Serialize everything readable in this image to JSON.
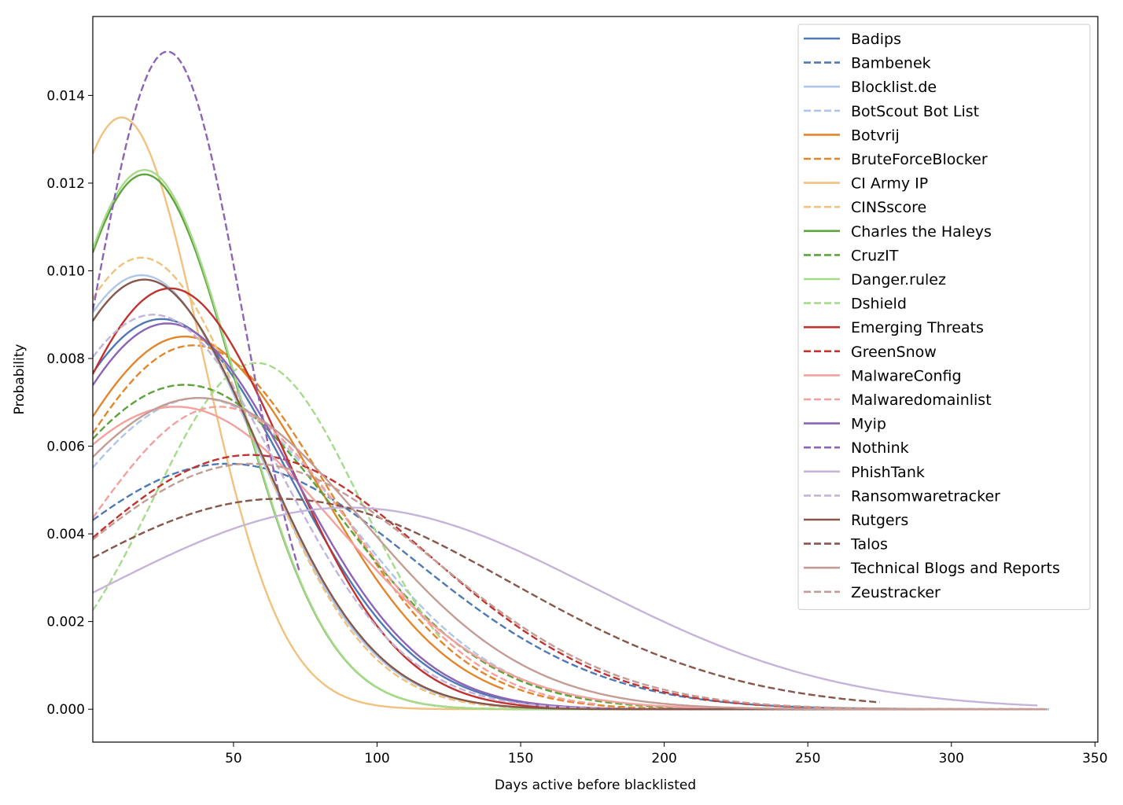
{
  "chart_data": {
    "type": "line",
    "title": "",
    "xlabel": "Days active before blacklisted",
    "ylabel": "Probability",
    "xlim": [
      1,
      351
    ],
    "ylim": [
      -0.00075,
      0.0158
    ],
    "xticks": [
      50,
      100,
      150,
      200,
      250,
      300,
      350
    ],
    "yticks": [
      0.0,
      0.002,
      0.004,
      0.006,
      0.008,
      0.01,
      0.012,
      0.014
    ],
    "ytick_labels": [
      "0.000",
      "0.002",
      "0.004",
      "0.006",
      "0.008",
      "0.010",
      "0.012",
      "0.014"
    ],
    "legend_position": "top-right",
    "grid": false,
    "series": [
      {
        "name": "Badips",
        "color": "#4e79b5",
        "dash": false,
        "peak_x": 25,
        "peak_y": 0.0089,
        "sigma": 44,
        "x_end": 334
      },
      {
        "name": "Bambenek",
        "color": "#4e79b5",
        "dash": true,
        "peak_x": 48,
        "peak_y": 0.0056,
        "sigma": 65,
        "x_end": 334
      },
      {
        "name": "Blocklist.de",
        "color": "#aec7e8",
        "dash": false,
        "peak_x": 18,
        "peak_y": 0.0099,
        "sigma": 40,
        "x_end": 334
      },
      {
        "name": "BotScout Bot List",
        "color": "#aec7e8",
        "dash": true,
        "peak_x": 38,
        "peak_y": 0.0071,
        "sigma": 52,
        "x_end": 176
      },
      {
        "name": "Botvrij",
        "color": "#e2862c",
        "dash": false,
        "peak_x": 33,
        "peak_y": 0.0085,
        "sigma": 46,
        "x_end": 144
      },
      {
        "name": "BruteForceBlocker",
        "color": "#e2862c",
        "dash": true,
        "peak_x": 36,
        "peak_y": 0.0083,
        "sigma": 47,
        "x_end": 333
      },
      {
        "name": "CI Army IP",
        "color": "#f1c27d",
        "dash": false,
        "peak_x": 11,
        "peak_y": 0.0135,
        "sigma": 28,
        "x_end": 333
      },
      {
        "name": "CINSscore",
        "color": "#f1c27d",
        "dash": true,
        "peak_x": 18,
        "peak_y": 0.0103,
        "sigma": 39,
        "x_end": 333
      },
      {
        "name": "Charles the Haleys",
        "color": "#5ea33b",
        "dash": false,
        "peak_x": 19,
        "peak_y": 0.0122,
        "sigma": 32,
        "x_end": 333
      },
      {
        "name": "CruzIT",
        "color": "#5ea33b",
        "dash": true,
        "peak_x": 33,
        "peak_y": 0.0074,
        "sigma": 53,
        "x_end": 333
      },
      {
        "name": "Danger.rulez",
        "color": "#a6db8b",
        "dash": false,
        "peak_x": 19,
        "peak_y": 0.0123,
        "sigma": 32,
        "x_end": 333
      },
      {
        "name": "Dshield",
        "color": "#a6db8b",
        "dash": true,
        "peak_x": 58,
        "peak_y": 0.0079,
        "sigma": 36,
        "x_end": 122
      },
      {
        "name": "Emerging Threats",
        "color": "#c0332f",
        "dash": false,
        "peak_x": 28,
        "peak_y": 0.0096,
        "sigma": 40,
        "x_end": 333
      },
      {
        "name": "GreenSnow",
        "color": "#c0332f",
        "dash": true,
        "peak_x": 56,
        "peak_y": 0.0058,
        "sigma": 62,
        "x_end": 333
      },
      {
        "name": "MalwareConfig",
        "color": "#f4a09c",
        "dash": false,
        "peak_x": 30,
        "peak_y": 0.0069,
        "sigma": 56,
        "x_end": 333
      },
      {
        "name": "Malwaredomainlist",
        "color": "#f4a09c",
        "dash": true,
        "peak_x": 45,
        "peak_y": 0.0069,
        "sigma": 46,
        "x_end": 176
      },
      {
        "name": "Myip",
        "color": "#8c63b5",
        "dash": false,
        "peak_x": 27,
        "peak_y": 0.0088,
        "sigma": 44,
        "x_end": 333
      },
      {
        "name": "Nothink",
        "color": "#8c63b5",
        "dash": true,
        "peak_x": 27,
        "peak_y": 0.015,
        "sigma": 26,
        "x_end": 73
      },
      {
        "name": "PhishTank",
        "color": "#c5b3d9",
        "dash": false,
        "peak_x": 90,
        "peak_y": 0.0046,
        "sigma": 85,
        "x_end": 330
      },
      {
        "name": "Ransomwaretracker",
        "color": "#c5b3d9",
        "dash": true,
        "peak_x": 22,
        "peak_y": 0.009,
        "sigma": 44,
        "x_end": 333
      },
      {
        "name": "Rutgers",
        "color": "#86574a",
        "dash": false,
        "peak_x": 19,
        "peak_y": 0.0098,
        "sigma": 40,
        "x_end": 333
      },
      {
        "name": "Talos",
        "color": "#86574a",
        "dash": true,
        "peak_x": 66,
        "peak_y": 0.0048,
        "sigma": 80,
        "x_end": 275
      },
      {
        "name": "Technical Blogs and Reports",
        "color": "#c49c94",
        "dash": false,
        "peak_x": 38,
        "peak_y": 0.0071,
        "sigma": 57,
        "x_end": 333
      },
      {
        "name": "Zeustracker",
        "color": "#c49c94",
        "dash": true,
        "peak_x": 56,
        "peak_y": 0.0056,
        "sigma": 64,
        "x_end": 333
      }
    ]
  }
}
